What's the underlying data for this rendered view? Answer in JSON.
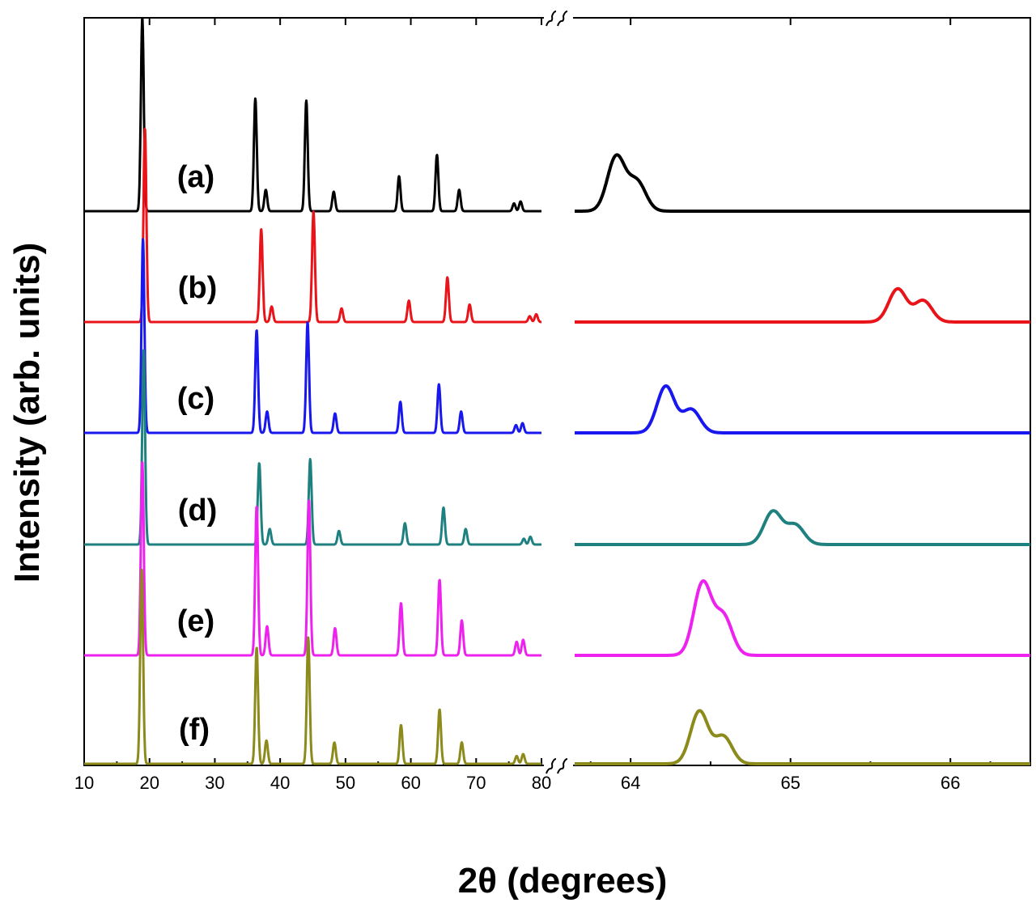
{
  "chart_data": {
    "type": "line",
    "xlabel": "2θ (degrees)",
    "ylabel": "Intensity (arb. units)",
    "panels": [
      {
        "name": "full",
        "xlim": [
          10,
          80
        ],
        "xticks": [
          10,
          20,
          30,
          40,
          50,
          60,
          70,
          80
        ]
      },
      {
        "name": "zoom",
        "xlim": [
          63.65,
          66.5
        ],
        "xticks": [
          64,
          65,
          66
        ]
      }
    ],
    "series": [
      {
        "name": "(a)",
        "color": "#000000",
        "peaks_full": [
          [
            18.9,
            1.0
          ],
          [
            36.2,
            0.58
          ],
          [
            37.8,
            0.11
          ],
          [
            44.0,
            0.57
          ],
          [
            48.2,
            0.1
          ],
          [
            58.2,
            0.18
          ],
          [
            64.0,
            0.29
          ],
          [
            67.4,
            0.11
          ],
          [
            75.8,
            0.04
          ],
          [
            76.8,
            0.05
          ]
        ],
        "peaks_zoom": [
          [
            63.91,
            0.28
          ],
          [
            64.04,
            0.15
          ]
        ]
      },
      {
        "name": "(b)",
        "color": "#e8141a",
        "peaks_full": [
          [
            19.3,
            1.0
          ],
          [
            37.1,
            0.48
          ],
          [
            38.7,
            0.08
          ],
          [
            45.1,
            0.57
          ],
          [
            49.4,
            0.07
          ],
          [
            59.7,
            0.11
          ],
          [
            65.6,
            0.23
          ],
          [
            69.0,
            0.09
          ],
          [
            78.2,
            0.03
          ],
          [
            79.2,
            0.04
          ]
        ],
        "peaks_zoom": [
          [
            65.67,
            0.17
          ],
          [
            65.83,
            0.11
          ]
        ]
      },
      {
        "name": "(c)",
        "color": "#1818ee",
        "peaks_full": [
          [
            19.0,
            1.0
          ],
          [
            36.4,
            0.53
          ],
          [
            38.0,
            0.11
          ],
          [
            44.2,
            0.57
          ],
          [
            48.4,
            0.1
          ],
          [
            58.4,
            0.16
          ],
          [
            64.3,
            0.25
          ],
          [
            67.7,
            0.11
          ],
          [
            76.1,
            0.04
          ],
          [
            77.1,
            0.05
          ]
        ],
        "peaks_zoom": [
          [
            64.22,
            0.24
          ],
          [
            64.38,
            0.12
          ]
        ]
      },
      {
        "name": "(d)",
        "color": "#1f8080",
        "peaks_full": [
          [
            19.1,
            1.0
          ],
          [
            36.8,
            0.42
          ],
          [
            38.4,
            0.08
          ],
          [
            44.6,
            0.44
          ],
          [
            49.0,
            0.07
          ],
          [
            59.1,
            0.11
          ],
          [
            65.0,
            0.19
          ],
          [
            68.4,
            0.08
          ],
          [
            77.3,
            0.03
          ],
          [
            78.3,
            0.04
          ]
        ],
        "peaks_zoom": [
          [
            64.89,
            0.17
          ],
          [
            65.03,
            0.1
          ]
        ]
      },
      {
        "name": "(e)",
        "color": "#ee22ee",
        "peaks_full": [
          [
            18.9,
            1.0
          ],
          [
            36.4,
            0.77
          ],
          [
            38.0,
            0.15
          ],
          [
            44.4,
            0.8
          ],
          [
            48.4,
            0.14
          ],
          [
            58.5,
            0.27
          ],
          [
            64.4,
            0.39
          ],
          [
            67.8,
            0.18
          ],
          [
            76.2,
            0.07
          ],
          [
            77.2,
            0.08
          ]
        ],
        "peaks_zoom": [
          [
            64.45,
            0.37
          ],
          [
            64.58,
            0.2
          ]
        ]
      },
      {
        "name": "(f)",
        "color": "#8c8a1a",
        "peaks_full": [
          [
            18.8,
            1.0
          ],
          [
            36.4,
            0.6
          ],
          [
            37.9,
            0.12
          ],
          [
            44.3,
            0.65
          ],
          [
            48.3,
            0.11
          ],
          [
            58.5,
            0.2
          ],
          [
            64.4,
            0.28
          ],
          [
            67.8,
            0.11
          ],
          [
            76.2,
            0.04
          ],
          [
            77.2,
            0.05
          ]
        ],
        "peaks_zoom": [
          [
            64.43,
            0.27
          ],
          [
            64.58,
            0.14
          ]
        ]
      }
    ]
  }
}
